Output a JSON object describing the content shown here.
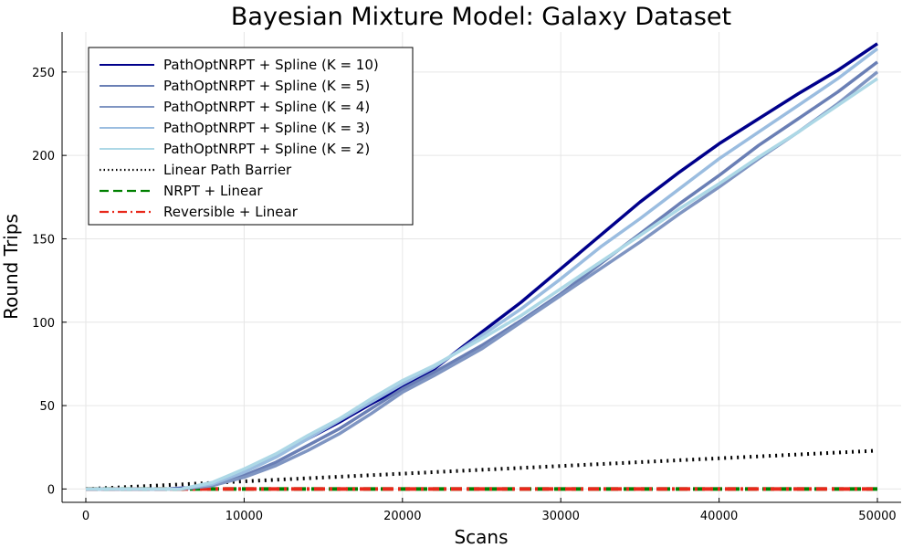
{
  "chart_data": {
    "type": "line",
    "title": "Bayesian Mixture Model: Galaxy Dataset",
    "xlabel": "Scans",
    "ylabel": "Round Trips",
    "xlim": [
      -1500,
      51500
    ],
    "ylim": [
      -8,
      274
    ],
    "xticks": [
      0,
      10000,
      20000,
      30000,
      40000,
      50000
    ],
    "xtick_labels": [
      "0",
      "10000",
      "20000",
      "30000",
      "40000",
      "50000"
    ],
    "yticks": [
      0,
      50,
      100,
      150,
      200,
      250
    ],
    "ytick_labels": [
      "0",
      "50",
      "100",
      "150",
      "200",
      "250"
    ],
    "grid": true,
    "legend_position": "top-left",
    "series": [
      {
        "name": "PathOptNRPT + Spline (K = 10)",
        "color": "#00008b",
        "style": "solid",
        "x": [
          0,
          5000,
          7000,
          8000,
          10000,
          12000,
          14000,
          16000,
          18000,
          20000,
          22000,
          25000,
          27500,
          30000,
          32500,
          35000,
          37500,
          40000,
          42500,
          45000,
          47500,
          50000
        ],
        "y": [
          0,
          0,
          1,
          3,
          10,
          20,
          30,
          40,
          51,
          61,
          72,
          94,
          112,
          132,
          152,
          172,
          190,
          207,
          222,
          237,
          251,
          267
        ]
      },
      {
        "name": "PathOptNRPT + Spline (K = 5)",
        "color": "#6a7fb5",
        "style": "solid",
        "x": [
          0,
          6000,
          8000,
          10000,
          12000,
          14000,
          16000,
          18000,
          20000,
          22000,
          25000,
          27500,
          30000,
          32500,
          35000,
          37500,
          40000,
          42500,
          45000,
          47500,
          50000
        ],
        "y": [
          0,
          0,
          2,
          8,
          16,
          26,
          36,
          48,
          60,
          70,
          86,
          101,
          117,
          135,
          153,
          171,
          188,
          206,
          222,
          238,
          256
        ]
      },
      {
        "name": "PathOptNRPT + Spline (K = 4)",
        "color": "#7f95c2",
        "style": "solid",
        "x": [
          0,
          6000,
          8000,
          10000,
          12000,
          14000,
          16000,
          18000,
          20000,
          22000,
          25000,
          27500,
          30000,
          32500,
          35000,
          37500,
          40000,
          42500,
          45000,
          47500,
          50000
        ],
        "y": [
          0,
          0,
          2,
          7,
          14,
          23,
          33,
          45,
          58,
          68,
          84,
          100,
          116,
          132,
          148,
          165,
          181,
          198,
          214,
          231,
          250
        ]
      },
      {
        "name": "PathOptNRPT + Spline (K = 3)",
        "color": "#9bbde0",
        "style": "solid",
        "x": [
          0,
          6000,
          8000,
          10000,
          12000,
          14000,
          16000,
          18000,
          20000,
          22000,
          25000,
          27500,
          30000,
          32500,
          35000,
          37500,
          40000,
          42500,
          45000,
          47500,
          50000
        ],
        "y": [
          0,
          0,
          3,
          10,
          19,
          30,
          41,
          52,
          63,
          73,
          92,
          108,
          126,
          145,
          162,
          180,
          198,
          214,
          230,
          246,
          264
        ]
      },
      {
        "name": "PathOptNRPT + Spline (K = 2)",
        "color": "#add8e6",
        "style": "solid",
        "x": [
          0,
          6000,
          8000,
          10000,
          12000,
          14000,
          16000,
          18000,
          20000,
          22000,
          25000,
          27500,
          30000,
          32500,
          35000,
          37500,
          40000,
          42500,
          45000,
          47500,
          50000
        ],
        "y": [
          0,
          0,
          4,
          12,
          21,
          32,
          42,
          54,
          65,
          74,
          90,
          104,
          120,
          136,
          152,
          168,
          183,
          199,
          214,
          230,
          246
        ]
      },
      {
        "name": "Linear Path Barrier",
        "color": "#000000",
        "style": "dotted",
        "x": [
          0,
          50000
        ],
        "y": [
          0,
          23
        ]
      },
      {
        "name": "NRPT + Linear",
        "color": "#008000",
        "style": "dashed",
        "x": [
          0,
          50000
        ],
        "y": [
          0,
          0
        ]
      },
      {
        "name": "Reversible + Linear",
        "color": "#e8281a",
        "style": "dashdot",
        "x": [
          0,
          50000
        ],
        "y": [
          0,
          0
        ]
      }
    ]
  }
}
